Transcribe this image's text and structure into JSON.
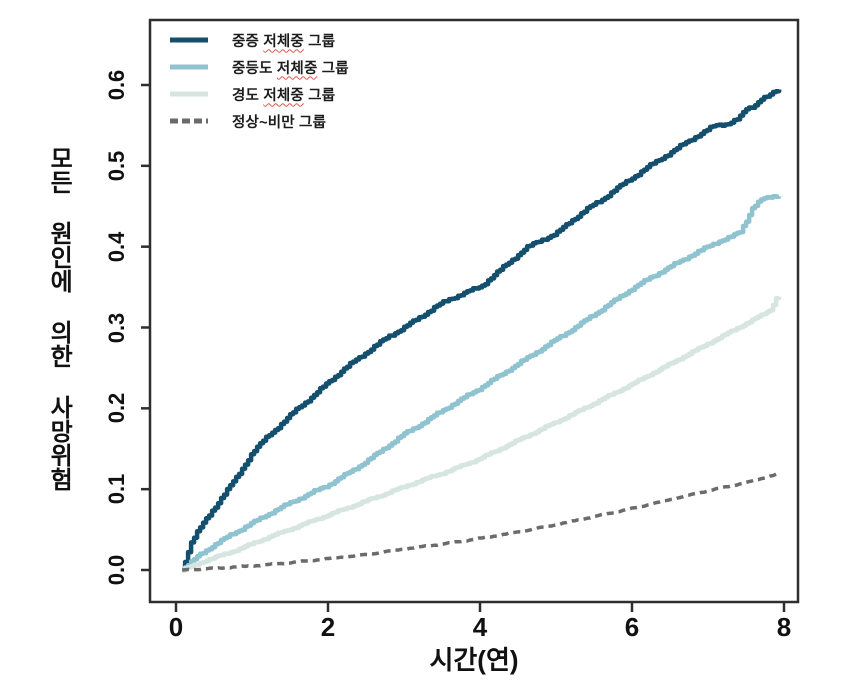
{
  "chart_data": {
    "type": "line",
    "title": "",
    "xlabel": "시간(연)",
    "ylabel": "모든 원인에 의한 사망위험",
    "xlim": [
      0,
      8
    ],
    "ylim": [
      0.0,
      0.6
    ],
    "x_ticks": [
      "0",
      "2",
      "4",
      "6",
      "8"
    ],
    "y_ticks": [
      "0.0",
      "0.1",
      "0.2",
      "0.3",
      "0.4",
      "0.5",
      "0.6"
    ],
    "grid": false,
    "legend_position": "top-left-inside",
    "frame_color": "#2e2e2e",
    "squiggle_color": "#e2574c",
    "series": [
      {
        "id": "severe-underweight",
        "label": "중증 저체중 그룹",
        "misspell_underline": "저체중",
        "color": "#14506e",
        "line_style": "solid",
        "x": [
          0.08,
          0.2,
          0.3,
          0.45,
          0.6,
          0.8,
          1.0,
          1.2,
          1.4,
          1.6,
          1.8,
          2.0,
          2.2,
          2.4,
          2.6,
          2.8,
          3.0,
          3.2,
          3.4,
          3.6,
          3.8,
          4.0,
          4.2,
          4.4,
          4.6,
          4.8,
          5.0,
          5.2,
          5.4,
          5.6,
          5.8,
          6.0,
          6.2,
          6.4,
          6.6,
          6.8,
          7.0,
          7.1,
          7.25,
          7.4,
          7.5,
          7.6,
          7.7,
          7.8,
          7.9,
          7.97
        ],
        "y": [
          0.0,
          0.035,
          0.05,
          0.07,
          0.09,
          0.115,
          0.145,
          0.165,
          0.182,
          0.2,
          0.215,
          0.232,
          0.248,
          0.262,
          0.276,
          0.289,
          0.3,
          0.312,
          0.325,
          0.335,
          0.343,
          0.35,
          0.366,
          0.382,
          0.398,
          0.408,
          0.416,
          0.432,
          0.446,
          0.458,
          0.472,
          0.485,
          0.498,
          0.51,
          0.522,
          0.534,
          0.545,
          0.55,
          0.552,
          0.558,
          0.57,
          0.574,
          0.583,
          0.586,
          0.593,
          0.595
        ]
      },
      {
        "id": "moderate-underweight",
        "label": "중등도 저체중 그룹",
        "misspell_underline": "저체중",
        "color": "#8fc3cf",
        "line_style": "solid",
        "x": [
          0.08,
          0.3,
          0.5,
          0.75,
          1.0,
          1.25,
          1.5,
          1.75,
          2.0,
          2.25,
          2.5,
          2.75,
          3.0,
          3.25,
          3.5,
          3.75,
          4.0,
          4.25,
          4.5,
          4.75,
          5.0,
          5.25,
          5.5,
          5.75,
          6.0,
          6.25,
          6.5,
          6.75,
          7.0,
          7.15,
          7.3,
          7.42,
          7.5,
          7.58,
          7.7,
          7.85,
          7.97
        ],
        "y": [
          0.0,
          0.018,
          0.031,
          0.045,
          0.058,
          0.071,
          0.083,
          0.094,
          0.105,
          0.119,
          0.134,
          0.151,
          0.168,
          0.182,
          0.197,
          0.211,
          0.225,
          0.24,
          0.255,
          0.27,
          0.285,
          0.3,
          0.316,
          0.332,
          0.348,
          0.362,
          0.375,
          0.388,
          0.4,
          0.407,
          0.412,
          0.418,
          0.432,
          0.448,
          0.458,
          0.462,
          0.464
        ]
      },
      {
        "id": "mild-underweight",
        "label": "경도 저체중 그룹",
        "misspell_underline": "저체중",
        "color": "#d7e5e1",
        "line_style": "solid",
        "x": [
          0.08,
          0.4,
          0.8,
          1.2,
          1.6,
          2.0,
          2.4,
          2.8,
          3.2,
          3.6,
          4.0,
          4.4,
          4.8,
          5.2,
          5.6,
          6.0,
          6.4,
          6.8,
          7.2,
          7.5,
          7.7,
          7.82,
          7.9,
          7.97
        ],
        "y": [
          0.0,
          0.012,
          0.025,
          0.04,
          0.054,
          0.068,
          0.082,
          0.096,
          0.11,
          0.123,
          0.138,
          0.156,
          0.174,
          0.192,
          0.211,
          0.23,
          0.25,
          0.27,
          0.29,
          0.305,
          0.315,
          0.322,
          0.337,
          0.34
        ]
      },
      {
        "id": "normal-to-obese",
        "label": "정상~비만 그룹",
        "misspell_underline": "",
        "color": "#6b6b6b",
        "line_style": "dashed",
        "x": [
          0.08,
          0.5,
          1.0,
          1.5,
          2.0,
          2.5,
          3.0,
          3.5,
          4.0,
          4.5,
          5.0,
          5.5,
          6.0,
          6.5,
          7.0,
          7.5,
          7.97
        ],
        "y": [
          0.0,
          0.002,
          0.005,
          0.009,
          0.014,
          0.019,
          0.026,
          0.032,
          0.039,
          0.047,
          0.056,
          0.066,
          0.076,
          0.087,
          0.098,
          0.108,
          0.12
        ]
      }
    ]
  }
}
